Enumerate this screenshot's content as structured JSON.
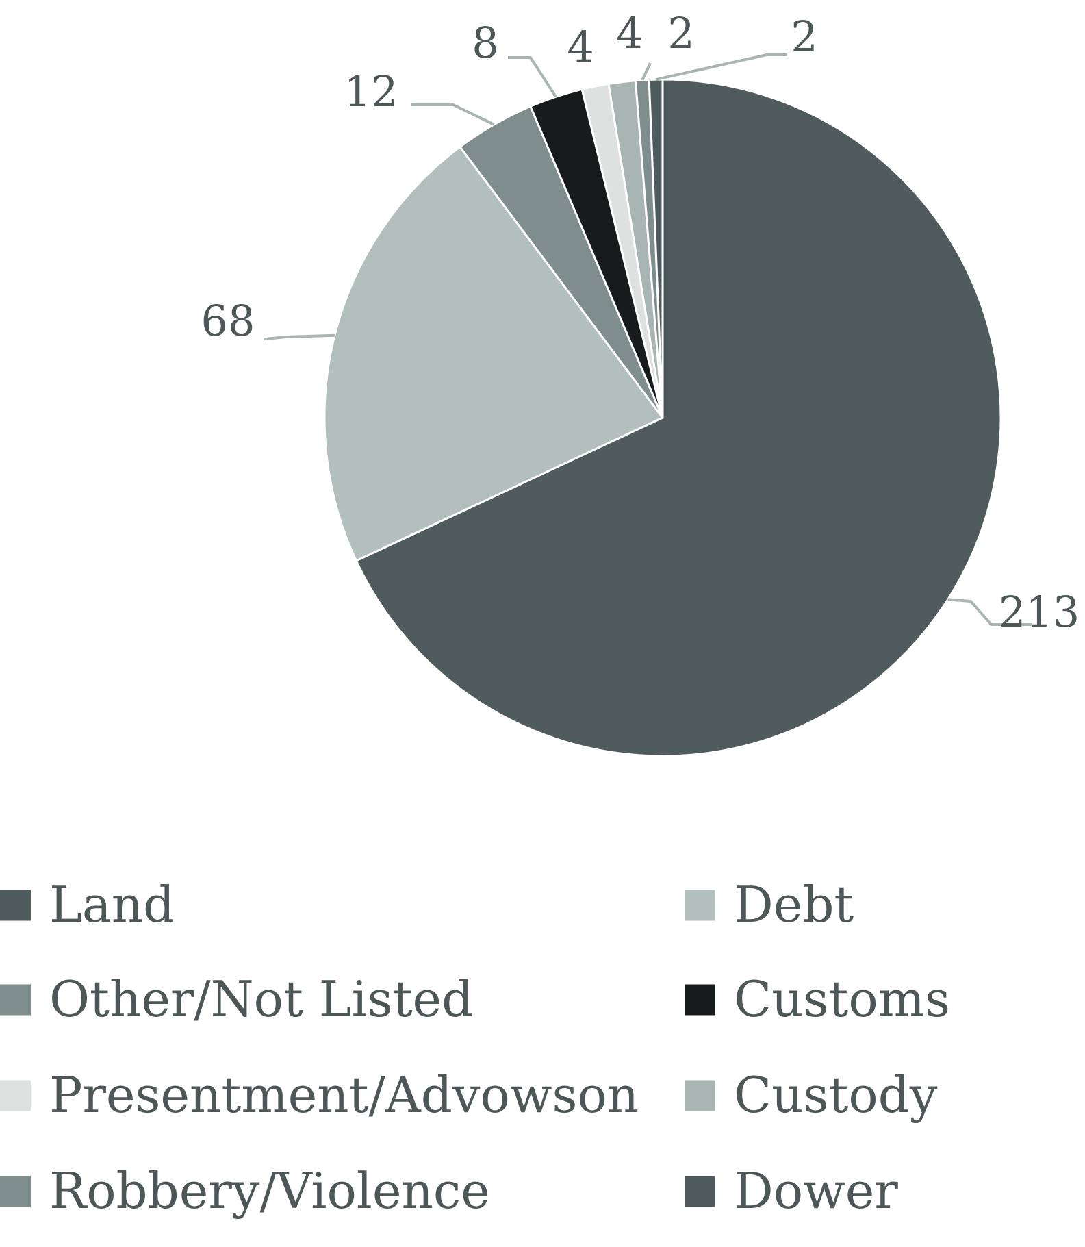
{
  "chart_data": {
    "type": "pie",
    "title": "",
    "slices": [
      {
        "label": "Land",
        "value": 213,
        "color": "#4f5b5c"
      },
      {
        "label": "Debt",
        "value": 68,
        "color": "#b3bfbc"
      },
      {
        "label": "Other/Not Listed",
        "value": 12,
        "color": "#7f8e8d"
      },
      {
        "label": "Customs",
        "value": 8,
        "color": "#171b1c"
      },
      {
        "label": "Presentment/Advowson",
        "value": 4,
        "color": "#dde1e0"
      },
      {
        "label": "Custody",
        "value": 4,
        "color": "#a9b5b3"
      },
      {
        "label": "Robbery/Violence",
        "value": 2,
        "color": "#7f8e8d"
      },
      {
        "label": "Dower",
        "value": 2,
        "color": "#4f5b5c"
      }
    ],
    "data_labels": [
      "213",
      "68",
      "12",
      "8",
      "4",
      "4",
      "2",
      "2"
    ],
    "legend": {
      "position": "bottom",
      "columns": 2,
      "entries": [
        "Land",
        "Debt",
        "Other/Not Listed",
        "Customs",
        "Presentment/Advowson",
        "Custody",
        "Robbery/Violence",
        "Dower"
      ]
    },
    "start_angle_deg": 0,
    "direction": "clockwise"
  }
}
